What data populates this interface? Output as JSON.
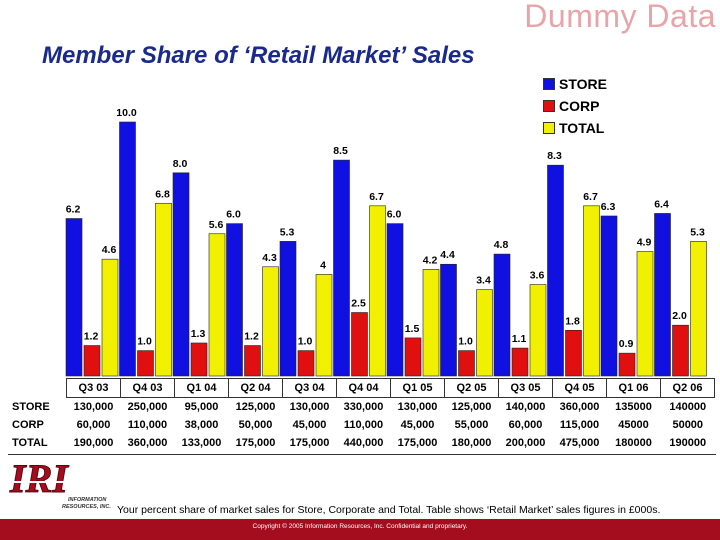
{
  "watermark": "Dummy Data",
  "title": "Member Share of ‘Retail Market’ Sales",
  "colors": {
    "store": "#1010e0",
    "corp": "#e01010",
    "total": "#f0f000"
  },
  "legend": [
    {
      "label": "STORE",
      "key": "store"
    },
    {
      "label": "CORP",
      "key": "corp"
    },
    {
      "label": "TOTAL",
      "key": "total"
    }
  ],
  "chart_data": {
    "type": "bar",
    "categories": [
      "Q3 03",
      "Q4 03",
      "Q1 04",
      "Q2 04",
      "Q3 04",
      "Q4 04",
      "Q1 05",
      "Q2 05",
      "Q3 05",
      "Q4 05",
      "Q1 06",
      "Q2 06"
    ],
    "series": [
      {
        "name": "STORE",
        "values": [
          6.2,
          10.0,
          8.0,
          6.0,
          5.3,
          8.5,
          6.0,
          4.4,
          4.8,
          8.3,
          6.3,
          6.4
        ],
        "labels": [
          "6.2",
          "10.0",
          "8.0",
          "6.0",
          "5.3",
          "8.5",
          "6.0",
          "4.4",
          "4.8",
          "8.3",
          "6.3",
          "6.4"
        ]
      },
      {
        "name": "CORP",
        "values": [
          1.2,
          1.0,
          1.3,
          1.2,
          1.0,
          2.5,
          1.5,
          1.0,
          1.1,
          1.8,
          0.9,
          2.0
        ],
        "labels": [
          "1.2",
          "1.0",
          "1.3",
          "1.2",
          "1.0",
          "2.5",
          "1.5",
          "1.0",
          "1.1",
          "1.8",
          "0.9",
          "2.0"
        ]
      },
      {
        "name": "TOTAL",
        "values": [
          4.6,
          6.8,
          5.6,
          4.3,
          4,
          6.7,
          4.2,
          3.4,
          3.6,
          6.7,
          4.9,
          5.3
        ],
        "labels": [
          "4.6",
          "6.8",
          "5.6",
          "4.3",
          "4",
          "6.7",
          "4.2",
          "3.4",
          "3.6",
          "6.7",
          "4.9",
          "5.3"
        ]
      }
    ],
    "ylim": [
      0,
      10.5
    ],
    "grid": false,
    "legend_position": "top-right"
  },
  "table": {
    "headers": [
      "Q3 03",
      "Q4 03",
      "Q1 04",
      "Q2 04",
      "Q3 04",
      "Q4 04",
      "Q1 05",
      "Q2 05",
      "Q3 05",
      "Q4 05",
      "Q1 06",
      "Q2 06"
    ],
    "rows": [
      {
        "label": "STORE",
        "cells": [
          "130,000",
          "250,000",
          "95,000",
          "125,000",
          "130,000",
          "330,000",
          "130,000",
          "125,000",
          "140,000",
          "360,000",
          "135000",
          "140000"
        ]
      },
      {
        "label": "CORP",
        "cells": [
          "60,000",
          "110,000",
          "38,000",
          "50,000",
          "45,000",
          "110,000",
          "45,000",
          "55,000",
          "60,000",
          "115,000",
          "45000",
          "50000"
        ]
      },
      {
        "label": "TOTAL",
        "cells": [
          "190,000",
          "360,000",
          "133,000",
          "175,000",
          "175,000",
          "440,000",
          "175,000",
          "180,000",
          "200,000",
          "475,000",
          "180000",
          "190000"
        ]
      }
    ]
  },
  "logo": {
    "letters": "IRI",
    "line1": "INFORMATION",
    "line2": "RESOURCES, INC."
  },
  "footnote": "Your percent share of market sales for Store, Corporate and Total. Table shows ‘Retail Market’ sales figures in £000s.",
  "copyright": "Copyright © 2005 Information Resources, Inc. Confidential and proprietary."
}
